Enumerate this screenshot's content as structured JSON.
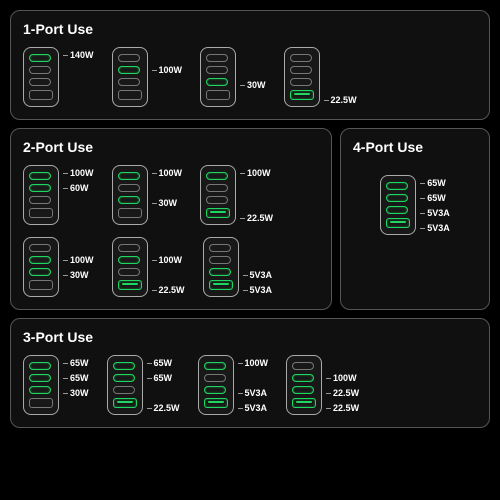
{
  "colors": {
    "background": "#000000",
    "panel_bg": "#101010",
    "panel_border": "#555555",
    "port_border_inactive": "#777777",
    "port_border_active": "#1ed760",
    "text": "#ffffff",
    "title_fontsize": 14,
    "label_fontsize": 9
  },
  "port_layout": {
    "per_charger": 4,
    "types": [
      "usbc",
      "usbc",
      "usbc",
      "usba"
    ]
  },
  "sections": [
    {
      "title": "1-Port Use",
      "layout": "row",
      "chargers": [
        {
          "ports": [
            {
              "active": true,
              "label": "140W"
            },
            {
              "active": false
            },
            {
              "active": false
            },
            {
              "active": false
            }
          ]
        },
        {
          "ports": [
            {
              "active": false
            },
            {
              "active": true,
              "label": "100W"
            },
            {
              "active": false
            },
            {
              "active": false
            }
          ]
        },
        {
          "ports": [
            {
              "active": false
            },
            {
              "active": false
            },
            {
              "active": true,
              "label": "30W"
            },
            {
              "active": false
            }
          ]
        },
        {
          "ports": [
            {
              "active": false
            },
            {
              "active": false
            },
            {
              "active": false
            },
            {
              "active": true,
              "label": "22.5W"
            }
          ]
        }
      ]
    },
    {
      "title": "2-Port Use",
      "layout": "grid3",
      "chargers": [
        {
          "ports": [
            {
              "active": true,
              "label": "100W"
            },
            {
              "active": true,
              "label": "60W"
            },
            {
              "active": false
            },
            {
              "active": false
            }
          ]
        },
        {
          "ports": [
            {
              "active": true,
              "label": "100W"
            },
            {
              "active": false
            },
            {
              "active": true,
              "label": "30W"
            },
            {
              "active": false
            }
          ]
        },
        {
          "ports": [
            {
              "active": true,
              "label": "100W"
            },
            {
              "active": false
            },
            {
              "active": false
            },
            {
              "active": true,
              "label": "22.5W"
            }
          ]
        },
        {
          "ports": [
            {
              "active": false
            },
            {
              "active": true,
              "label": "100W"
            },
            {
              "active": true,
              "label": "30W"
            },
            {
              "active": false
            }
          ]
        },
        {
          "ports": [
            {
              "active": false
            },
            {
              "active": true,
              "label": "100W"
            },
            {
              "active": false
            },
            {
              "active": true,
              "label": "22.5W"
            }
          ]
        },
        {
          "ports": [
            {
              "active": false
            },
            {
              "active": false
            },
            {
              "active": true,
              "label": "5V3A"
            },
            {
              "active": true,
              "label": "5V3A"
            }
          ]
        }
      ]
    },
    {
      "title": "4-Port Use",
      "layout": "single",
      "chargers": [
        {
          "ports": [
            {
              "active": true,
              "label": "65W"
            },
            {
              "active": true,
              "label": "65W"
            },
            {
              "active": true,
              "label": "5V3A"
            },
            {
              "active": true,
              "label": "5V3A"
            }
          ]
        }
      ]
    },
    {
      "title": "3-Port Use",
      "layout": "row",
      "chargers": [
        {
          "ports": [
            {
              "active": true,
              "label": "65W"
            },
            {
              "active": true,
              "label": "65W"
            },
            {
              "active": true,
              "label": "30W"
            },
            {
              "active": false
            }
          ]
        },
        {
          "ports": [
            {
              "active": true,
              "label": "65W"
            },
            {
              "active": true,
              "label": "65W"
            },
            {
              "active": false
            },
            {
              "active": true,
              "label": "22.5W"
            }
          ]
        },
        {
          "ports": [
            {
              "active": true,
              "label": "100W"
            },
            {
              "active": false
            },
            {
              "active": true,
              "label": "5V3A"
            },
            {
              "active": true,
              "label": "5V3A"
            }
          ]
        },
        {
          "ports": [
            {
              "active": false
            },
            {
              "active": true,
              "label": "100W"
            },
            {
              "active": true,
              "label": "22.5W"
            },
            {
              "active": true,
              "label": "22.5W"
            }
          ]
        }
      ]
    }
  ]
}
